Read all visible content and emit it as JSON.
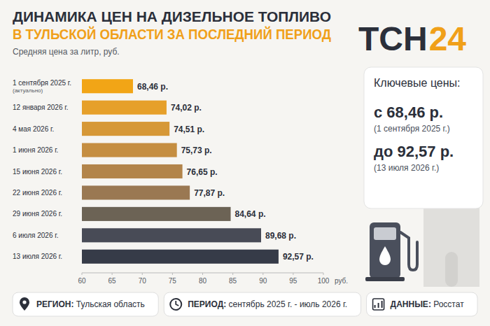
{
  "chart_data": {
    "type": "bar",
    "orientation": "horizontal",
    "title": [
      "ДИНАМИКА ЦЕН НА ДИЗЕЛЬНОЕ ТОПЛИВО",
      "В ТУЛЬСКОЙ ОБЛАСТИ ЗА ПОСЛЕДНИЙ ПЕРИОД"
    ],
    "subtitle": "Средняя цена за литр, руб.",
    "xlabel": "руб.",
    "categories": [
      "1 сентября 2025 г.",
      "12 января 2026 г.",
      "4 мая 2026 г.",
      "1 июня 2026 г.",
      "15 июня 2026 г.",
      "22 июня 2026 г.",
      "29 июня 2026 г.",
      "6 июля 2026 г.",
      "13 июля 2026 г."
    ],
    "values": [
      68.46,
      74.02,
      74.51,
      75.73,
      76.65,
      77.87,
      84.64,
      89.68,
      92.57
    ],
    "value_labels": [
      "68,46 р.",
      "74,02 р.",
      "74,51 р.",
      "75,73 р.",
      "76,65 р.",
      "77,87 р.",
      "84,64 р.",
      "89,68 р.",
      "92,57 р."
    ],
    "colors": [
      "#f2a516",
      "#e6a02a",
      "#d69837",
      "#c58e41",
      "#b2844a",
      "#9a7852",
      "#6c6355",
      "#484b56",
      "#363b48"
    ],
    "xlim": [
      60,
      100
    ],
    "xticks": [
      60,
      65,
      70,
      75,
      80,
      85,
      90,
      95,
      100
    ],
    "grid": false,
    "data_labels": true,
    "annotations": [
      {
        "category": "1 сентября 2025 г.",
        "text": "(актуально)"
      }
    ]
  },
  "logo": {
    "text": "ТСН",
    "accent": "24"
  },
  "key_prices": {
    "heading": "Ключевые цены:",
    "items": [
      {
        "text": "с 68,46 р.",
        "note": "(1 сентября 2025 г.)"
      },
      {
        "text": "до 92,57 р.",
        "note": "(13 июля 2026 г.)"
      }
    ]
  },
  "footer": [
    {
      "label": "РЕГИОН:",
      "value": "Тульская область"
    },
    {
      "label": "ПЕРИОД:",
      "value": "сентябрь 2025 г. - июль 2026 г."
    },
    {
      "label": "ДАННЫЕ:",
      "value": "Росстат"
    }
  ]
}
